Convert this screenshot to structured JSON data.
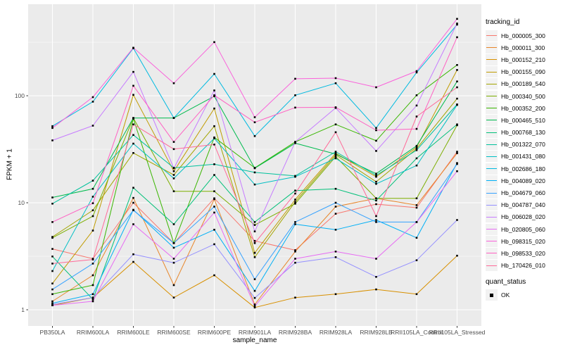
{
  "chart_data": {
    "type": "line",
    "title": "",
    "xlabel": "sample_name",
    "ylabel": "FPKM + 1",
    "y_scale": "log10",
    "y_ticks": [
      1,
      10,
      100
    ],
    "y_minor_gridlines": [
      3.162,
      31.62,
      316.2
    ],
    "ylim_log": [
      0.94,
      550
    ],
    "grid": "major-and-minor, white on gray panel",
    "legend_position": "right",
    "panel_color": "#EBEBEB",
    "grid_color": "#FFFFFF",
    "point_shape": "square",
    "point_color": "#000000",
    "categories": [
      "PB350LA",
      "RRIM600LA",
      "RRIM600LE",
      "RRIM600SE",
      "RRIM600PE",
      "RRIM901LA",
      "RRIM928BA",
      "RRIM928LA",
      "RRIM928LB",
      "RRII105LA_Control",
      "RRII105LA_Stressed"
    ],
    "legend": {
      "series_title": "tracking_id",
      "shape_title": "quant_status",
      "shape_label": "OK"
    },
    "series": [
      {
        "name": "Hb_000005_300",
        "color": "#F8766D",
        "values": [
          3.7,
          3.0,
          10.0,
          4.2,
          11.0,
          4.4,
          3.6,
          7.9,
          9.7,
          9.0,
          30
        ]
      },
      {
        "name": "Hb_000011_300",
        "color": "#E8862A",
        "values": [
          1.2,
          2.1,
          11.1,
          1.7,
          10.8,
          1.12,
          3.5,
          9.2,
          11.0,
          9.5,
          29
        ]
      },
      {
        "name": "Hb_000152_210",
        "color": "#D89000",
        "values": [
          1.1,
          1.3,
          2.8,
          1.3,
          2.1,
          1.05,
          1.3,
          1.4,
          1.55,
          1.4,
          3.2
        ]
      },
      {
        "name": "Hb_000155_090",
        "color": "#C09B00",
        "values": [
          1.76,
          5.5,
          102,
          19.7,
          76,
          3.4,
          10.7,
          29,
          17.5,
          33,
          174
        ]
      },
      {
        "name": "Hb_000189_540",
        "color": "#A3A500",
        "values": [
          4.8,
          8.5,
          29.2,
          18.2,
          52,
          3.1,
          10.2,
          28,
          15.7,
          32,
          94
        ]
      },
      {
        "name": "Hb_000340_500",
        "color": "#7CAE00",
        "values": [
          4.7,
          7.5,
          62,
          12.8,
          12.8,
          6.2,
          9.8,
          27,
          11.0,
          11.0,
          53
        ]
      },
      {
        "name": "Hb_000352_200",
        "color": "#39B600",
        "values": [
          1.4,
          1.7,
          61,
          4.2,
          40.8,
          21.2,
          37,
          54,
          38,
          101,
          194
        ]
      },
      {
        "name": "Hb_000465_510",
        "color": "#00BB4E",
        "values": [
          11.2,
          13.5,
          62,
          62,
          99,
          21.0,
          36,
          28.5,
          18.7,
          34,
          136
        ]
      },
      {
        "name": "Hb_000768_130",
        "color": "#00C079",
        "values": [
          3.15,
          1.25,
          13.8,
          6.3,
          18.2,
          6.6,
          13.0,
          13.5,
          10.5,
          26,
          54
        ]
      },
      {
        "name": "Hb_001322_070",
        "color": "#00C19C",
        "values": [
          9.8,
          16.1,
          43,
          21.2,
          22.9,
          19.2,
          17.8,
          30,
          18.0,
          31,
          83
        ]
      },
      {
        "name": "Hb_001431_080",
        "color": "#00BFC4",
        "values": [
          2.3,
          11.4,
          35.7,
          16.9,
          40,
          14.8,
          17.5,
          26,
          15.0,
          22.3,
          82
        ]
      },
      {
        "name": "Hb_002686_180",
        "color": "#00BAE0",
        "values": [
          52,
          88,
          278,
          62,
          160,
          42,
          101,
          131,
          50,
          165,
          462
        ]
      },
      {
        "name": "Hb_004089_020",
        "color": "#00B0F6",
        "values": [
          1.15,
          1.4,
          8.6,
          3.8,
          5.6,
          1.5,
          6.3,
          5.6,
          6.9,
          4.7,
          23.5
        ]
      },
      {
        "name": "Hb_004679_060",
        "color": "#35A2FF",
        "values": [
          1.55,
          2.7,
          8.5,
          4.2,
          9.2,
          1.93,
          6.6,
          10.0,
          6.6,
          6.6,
          23
        ]
      },
      {
        "name": "Hb_004787_040",
        "color": "#9590FF",
        "values": [
          1.12,
          1.3,
          3.3,
          2.75,
          4.1,
          1.29,
          2.75,
          3.1,
          2.03,
          2.9,
          6.9
        ]
      },
      {
        "name": "Hb_006028_020",
        "color": "#C77CFF",
        "values": [
          38.3,
          52.5,
          167,
          21.0,
          112,
          5.4,
          37,
          77,
          30.5,
          81,
          473
        ]
      },
      {
        "name": "Hb_020805_060",
        "color": "#E76BF3",
        "values": [
          1.1,
          1.2,
          6.3,
          3.0,
          8.1,
          1.08,
          3.0,
          3.5,
          3.0,
          6.6,
          19.7
        ]
      },
      {
        "name": "Hb_098315_020",
        "color": "#FA62DB",
        "values": [
          50,
          97,
          281,
          131,
          317,
          63,
          144,
          146,
          120,
          170,
          523
        ]
      },
      {
        "name": "Hb_098533_020",
        "color": "#FF61C3",
        "values": [
          6.6,
          9.9,
          124,
          37,
          101,
          56.5,
          77.5,
          78,
          47.6,
          49,
          352
        ]
      },
      {
        "name": "Hb_170426_010",
        "color": "#FF6A98",
        "values": [
          2.7,
          2.95,
          54,
          31.7,
          35,
          4.2,
          12.2,
          45.6,
          7.5,
          64,
          120
        ]
      }
    ]
  }
}
